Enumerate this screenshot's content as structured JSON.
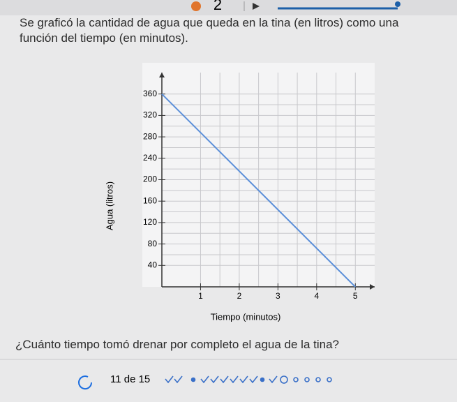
{
  "header": {
    "step": "2"
  },
  "prompt": "Se graficó la cantidad de agua que queda en la tina (en litros) como una función del tiempo (en minutos).",
  "chart_data": {
    "type": "line",
    "x_label": "Tiempo (minutos)",
    "y_label": "Agua (litros)",
    "series": [
      {
        "color": "#5b8fd9",
        "x": [
          0,
          5
        ],
        "values": [
          360,
          0
        ]
      }
    ],
    "xlim": [
      0,
      5.5
    ],
    "ylim": [
      0,
      400
    ],
    "xticks": [
      1,
      2,
      3,
      4,
      5
    ],
    "yticks": [
      40,
      80,
      120,
      160,
      200,
      240,
      280,
      320,
      360
    ],
    "grid": true
  },
  "question": "¿Cuánto tiempo tomó drenar por completo el agua de la tina?",
  "footer": {
    "progress": "11 de 15"
  }
}
